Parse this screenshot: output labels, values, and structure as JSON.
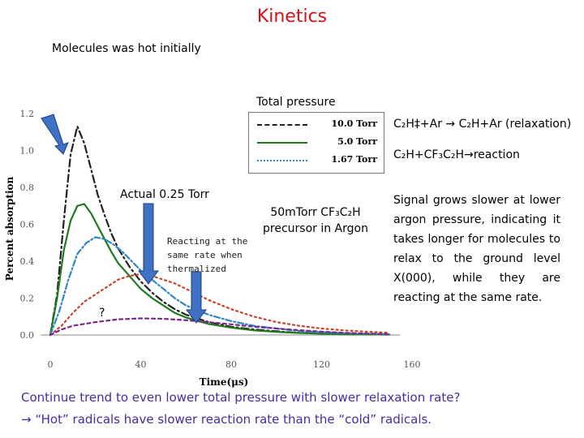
{
  "slide": {
    "title": "Kinetics",
    "subtitle": "Molecules was hot initially",
    "total_pressure_label": "Total pressure",
    "annotations": {
      "relaxation": "C₂H‡+Ar → C₂H+Ar (relaxation)",
      "reaction": "C₂H+CF₃C₂H→reaction",
      "actual": "Actual 0.25 Torr",
      "precursor_line1": "50mTorr CF₃C₂H",
      "precursor_line2": "precursor in Argon",
      "reacting_line1": "Reacting at the",
      "reacting_line2": "same rate when",
      "reacting_line3": "thermalized",
      "signal": "Signal grows slower at lower argon pressure, indicating it takes longer for molecules to relax to the ground level X(000), while they are reacting at the same rate.",
      "question_mark": "?"
    },
    "footer": {
      "line1": "Continue trend to even lower total pressure with slower relaxation rate?",
      "line2": "→ “Hot” radicals have slower reaction rate than the “cold” radicals."
    }
  },
  "colors": {
    "title": "#d8101c",
    "footer": "#4a2aa3",
    "arrow": "#3f72c4",
    "arrow_stroke": "#1f3f80"
  },
  "chart_data": {
    "type": "line",
    "xlabel": "Time(μs)",
    "ylabel": "Percent absorption",
    "xlim": [
      0,
      160
    ],
    "ylim": [
      0,
      1.2
    ],
    "xticks": [
      "0",
      "40",
      "80",
      "120",
      "160"
    ],
    "yticks": [
      "0.0",
      "0.2",
      "0.4",
      "0.6",
      "0.8",
      "1.0",
      "1.2"
    ],
    "series": [
      {
        "name": "10.0 Torr",
        "color": "#222222",
        "dash": "9,4,2,4",
        "x": [
          0,
          3,
          6,
          9,
          12,
          15,
          18,
          21,
          24,
          27,
          30,
          35,
          40,
          45,
          50,
          55,
          60,
          70,
          80,
          90,
          100,
          110,
          120,
          130,
          140,
          150
        ],
        "y": [
          0,
          0.22,
          0.62,
          0.98,
          1.13,
          1.04,
          0.9,
          0.76,
          0.65,
          0.55,
          0.47,
          0.37,
          0.29,
          0.23,
          0.18,
          0.14,
          0.11,
          0.07,
          0.045,
          0.03,
          0.02,
          0.012,
          0.008,
          0.005,
          0.003,
          0.002
        ]
      },
      {
        "name": "5.0 Torr",
        "color": "#1e7a1e",
        "dash": "",
        "x": [
          0,
          3,
          6,
          9,
          12,
          15,
          18,
          21,
          24,
          27,
          30,
          35,
          40,
          45,
          50,
          55,
          60,
          70,
          80,
          90,
          100,
          110,
          120,
          130,
          140,
          150
        ],
        "y": [
          0,
          0.2,
          0.46,
          0.62,
          0.7,
          0.71,
          0.66,
          0.59,
          0.52,
          0.45,
          0.39,
          0.32,
          0.25,
          0.2,
          0.16,
          0.12,
          0.095,
          0.06,
          0.04,
          0.025,
          0.017,
          0.011,
          0.007,
          0.004,
          0.003,
          0.002
        ]
      },
      {
        "name": "1.67 Torr",
        "color": "#2f86c8",
        "dash": "7,3,2,3",
        "x": [
          0,
          4,
          8,
          12,
          16,
          20,
          24,
          28,
          32,
          36,
          40,
          45,
          50,
          55,
          60,
          70,
          80,
          90,
          100,
          110,
          120,
          130,
          140,
          150
        ],
        "y": [
          0,
          0.13,
          0.3,
          0.44,
          0.5,
          0.53,
          0.52,
          0.49,
          0.45,
          0.4,
          0.35,
          0.3,
          0.25,
          0.2,
          0.16,
          0.11,
          0.075,
          0.05,
          0.035,
          0.022,
          0.015,
          0.01,
          0.007,
          0.004
        ]
      },
      {
        "name": "0.25 Torr",
        "color": "#c8422a",
        "dash": "2,4",
        "x": [
          0,
          5,
          10,
          15,
          20,
          25,
          30,
          35,
          40,
          45,
          50,
          55,
          60,
          70,
          80,
          90,
          100,
          110,
          120,
          130,
          140,
          150
        ],
        "y": [
          0,
          0.05,
          0.12,
          0.18,
          0.22,
          0.26,
          0.3,
          0.32,
          0.33,
          0.32,
          0.3,
          0.28,
          0.25,
          0.19,
          0.14,
          0.1,
          0.07,
          0.05,
          0.035,
          0.025,
          0.018,
          0.012
        ]
      },
      {
        "color": "#7a2a8a",
        "dash": "4,4",
        "x": [
          0,
          5,
          10,
          15,
          20,
          30,
          40,
          50,
          60,
          70,
          80,
          90,
          100,
          110,
          120,
          130,
          140,
          150
        ],
        "y": [
          0,
          0.03,
          0.05,
          0.06,
          0.07,
          0.085,
          0.09,
          0.088,
          0.08,
          0.07,
          0.058,
          0.045,
          0.035,
          0.026,
          0.018,
          0.012,
          0.008,
          0.005
        ]
      }
    ],
    "legend_position": "top-right"
  }
}
